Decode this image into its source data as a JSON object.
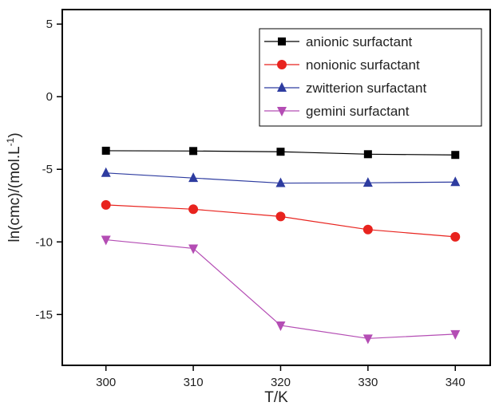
{
  "chart_data": {
    "type": "line",
    "xlabel": "T/K",
    "ylabel": "ln(cmc)/(mol.L",
    "ylabel_sup": "-1",
    "ylabel_close": ")",
    "x": [
      300,
      310,
      320,
      330,
      340
    ],
    "xlim": [
      295,
      344
    ],
    "ylim": [
      -18.5,
      6
    ],
    "xticks": [
      300,
      310,
      320,
      330,
      340
    ],
    "yticks": [
      5,
      0,
      -5,
      -10,
      -15
    ],
    "grid": false,
    "legend_position": "top-right",
    "series": [
      {
        "name": "anionic surfactant",
        "color": "#000000",
        "marker": "square",
        "values": [
          -3.72,
          -3.74,
          -3.79,
          -3.96,
          -4.01
        ]
      },
      {
        "name": "nonionic surfactant",
        "color": "#e8231e",
        "marker": "circle",
        "values": [
          -7.45,
          -7.75,
          -8.25,
          -9.15,
          -9.65
        ]
      },
      {
        "name": "zwitterion surfactant",
        "color": "#2e3ca0",
        "marker": "triangle-up",
        "values": [
          -5.25,
          -5.6,
          -5.95,
          -5.93,
          -5.88
        ]
      },
      {
        "name": "gemini surfactant",
        "color": "#b44db4",
        "marker": "triangle-down",
        "values": [
          -9.85,
          -10.45,
          -15.75,
          -16.65,
          -16.35
        ]
      }
    ]
  }
}
